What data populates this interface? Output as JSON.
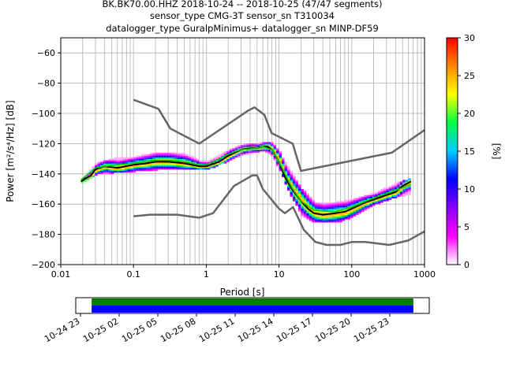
{
  "chart_data": {
    "type": "scatter",
    "subtype": "probabilistic power spectral density (PPSD) histogram",
    "title_lines": [
      "BK.BK70.00.HHZ   2018-10-24 -- 2018-10-25  (47/47 segments)",
      "sensor_type CMG-3T sensor_sn T310034",
      "datalogger_type GuralpMinimus+ datalogger_sn MINP-DF59"
    ],
    "xlabel": "Period [s]",
    "ylabel": "Power [m²/s⁴/Hz] [dB]",
    "xscale": "log",
    "xlim": [
      0.01,
      1000
    ],
    "ylim": [
      -200,
      -50
    ],
    "xticks": [
      0.01,
      0.1,
      1,
      10,
      100,
      1000
    ],
    "xtick_labels": [
      "0.01",
      "0.1",
      "1",
      "10",
      "100",
      "1000"
    ],
    "yticks": [
      -200,
      -180,
      -160,
      -140,
      -120,
      -100,
      -80,
      -60
    ],
    "ytick_labels": [
      "−200",
      "−180",
      "−160",
      "−140",
      "−120",
      "−100",
      "−80",
      "−60"
    ],
    "grid": true,
    "colorbar": {
      "label": "[%]",
      "range": [
        0,
        30
      ],
      "ticks": [
        0,
        5,
        10,
        15,
        20,
        25,
        30
      ],
      "tick_labels": [
        "0",
        "5",
        "10",
        "15",
        "20",
        "25",
        "30"
      ],
      "colormap": [
        "#ffffff",
        "#ff00ff",
        "#8800ff",
        "#0000ff",
        "#00ccff",
        "#00ff44",
        "#ffff00",
        "#ff8800",
        "#ff0000"
      ]
    },
    "series": [
      {
        "role": "mode",
        "color": "#000000",
        "x": [
          0.019,
          0.022,
          0.026,
          0.03,
          0.04,
          0.06,
          0.1,
          0.15,
          0.2,
          0.3,
          0.5,
          0.8,
          1.0,
          1.5,
          2.0,
          3.0,
          4.0,
          5.0,
          6.0,
          7.0,
          8.0,
          10.0,
          12.0,
          15.0,
          20.0,
          25.0,
          30.0,
          40.0,
          60.0,
          80.0,
          100.0,
          150.0,
          200.0,
          300.0,
          400.0,
          500.0,
          650.0
        ],
        "y": [
          -145,
          -143,
          -141,
          -137,
          -135,
          -136,
          -134,
          -133,
          -132,
          -132,
          -133,
          -135,
          -135,
          -132,
          -128,
          -124,
          -123,
          -123,
          -122,
          -122,
          -124,
          -132,
          -142,
          -150,
          -158,
          -163,
          -166,
          -167,
          -166,
          -165,
          -163,
          -159,
          -157,
          -154,
          -152,
          -148,
          -145
        ]
      },
      {
        "role": "mean",
        "color": "#00cc00",
        "x": [
          0.019,
          0.03,
          0.06,
          0.1,
          0.2,
          0.3,
          0.5,
          0.8,
          1.0,
          2.0,
          3.0,
          5.0,
          6.0,
          8.0,
          10.0,
          15.0,
          20.0,
          30.0,
          60.0,
          100.0,
          200.0,
          400.0,
          650.0
        ],
        "y": [
          -144,
          -136,
          -134,
          -133,
          -131,
          -131,
          -132,
          -134,
          -134,
          -127,
          -124,
          -123,
          -122,
          -124,
          -132,
          -149,
          -158,
          -164,
          -165,
          -162,
          -156,
          -151,
          -147
        ]
      },
      {
        "role": "NHNM",
        "color": "#666666",
        "x": [
          0.1,
          0.22,
          0.32,
          0.8,
          3.8,
          4.6,
          6.3,
          7.9,
          15.4,
          20.0,
          354.8,
          1000.0
        ],
        "y": [
          -91,
          -97,
          -110,
          -120,
          -98,
          -96,
          -101,
          -113,
          -120,
          -138,
          -126,
          -111
        ]
      },
      {
        "role": "NLNM",
        "color": "#666666",
        "x": [
          0.1,
          0.17,
          0.4,
          0.8,
          1.24,
          2.4,
          4.3,
          5.0,
          6.0,
          10.0,
          12.0,
          15.6,
          21.9,
          31.6,
          45.0,
          70.0,
          101.0,
          154.0,
          328.0,
          600.0,
          1000.0
        ],
        "y": [
          -168,
          -167,
          -167,
          -169,
          -166,
          -148,
          -141,
          -141,
          -150,
          -163,
          -166,
          -162,
          -177,
          -185,
          -187,
          -187,
          -185,
          -185,
          -187,
          -184,
          -178
        ]
      }
    ],
    "density_band": {
      "x": [
        0.019,
        0.03,
        0.05,
        0.1,
        0.2,
        0.3,
        0.5,
        0.8,
        1.0,
        2.0,
        3.0,
        5.0,
        6.0,
        8.0,
        10.0,
        15.0,
        20.0,
        30.0,
        60.0,
        100.0,
        200.0,
        400.0,
        650.0
      ],
      "low": [
        -146,
        -140,
        -139,
        -138,
        -137,
        -137,
        -137,
        -137,
        -137,
        -131,
        -127,
        -125,
        -125,
        -128,
        -138,
        -157,
        -167,
        -172,
        -172,
        -168,
        -160,
        -155,
        -153
      ],
      "high": [
        -143,
        -133,
        -130,
        -129,
        -126,
        -126,
        -127,
        -131,
        -132,
        -124,
        -121,
        -120,
        -119,
        -120,
        -126,
        -141,
        -150,
        -159,
        -159,
        -157,
        -153,
        -146,
        -143
      ]
    }
  },
  "timeline": {
    "tick_labels": [
      "10-24 23",
      "10-25 02",
      "10-25 05",
      "10-25 08",
      "10-25 11",
      "10-25 14",
      "10-25 17",
      "10-25 20",
      "10-25 23"
    ],
    "data_start_fraction": 0.045,
    "data_end_fraction": 0.955,
    "colors": [
      "#008000",
      "#0000ff"
    ]
  }
}
